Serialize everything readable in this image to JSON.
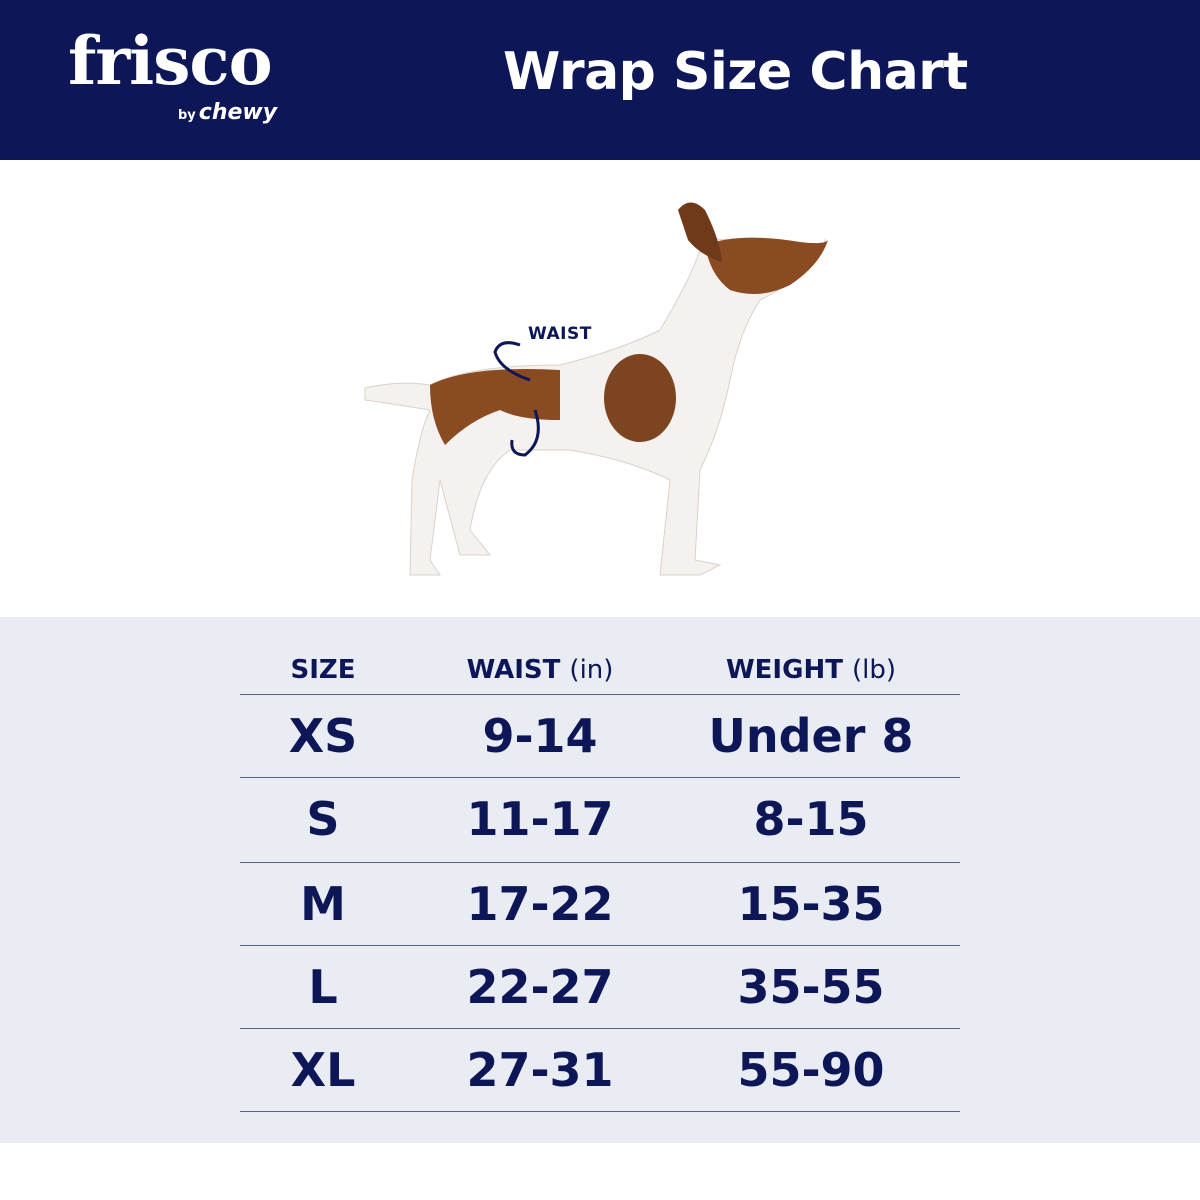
{
  "header": {
    "logo_text": "frisco",
    "logo_by": "by",
    "logo_sub": "chewy",
    "title": "Wrap Size Chart"
  },
  "figure": {
    "waist_label": "WAIST"
  },
  "table": {
    "columns": [
      {
        "label": "SIZE",
        "unit": ""
      },
      {
        "label": "WAIST",
        "unit": "(in)"
      },
      {
        "label": "WEIGHT",
        "unit": "(lb)"
      }
    ],
    "rows": [
      [
        "XS",
        "9-14",
        "Under 8"
      ],
      [
        "S",
        "11-17",
        "8-15"
      ],
      [
        "M",
        "17-22",
        "15-35"
      ],
      [
        "L",
        "22-27",
        "35-55"
      ],
      [
        "XL",
        "27-31",
        "55-90"
      ]
    ]
  },
  "colors": {
    "navy": "#0d1757",
    "table_bg": "#e9ecf2",
    "dog_brown": "#8a4a22"
  }
}
